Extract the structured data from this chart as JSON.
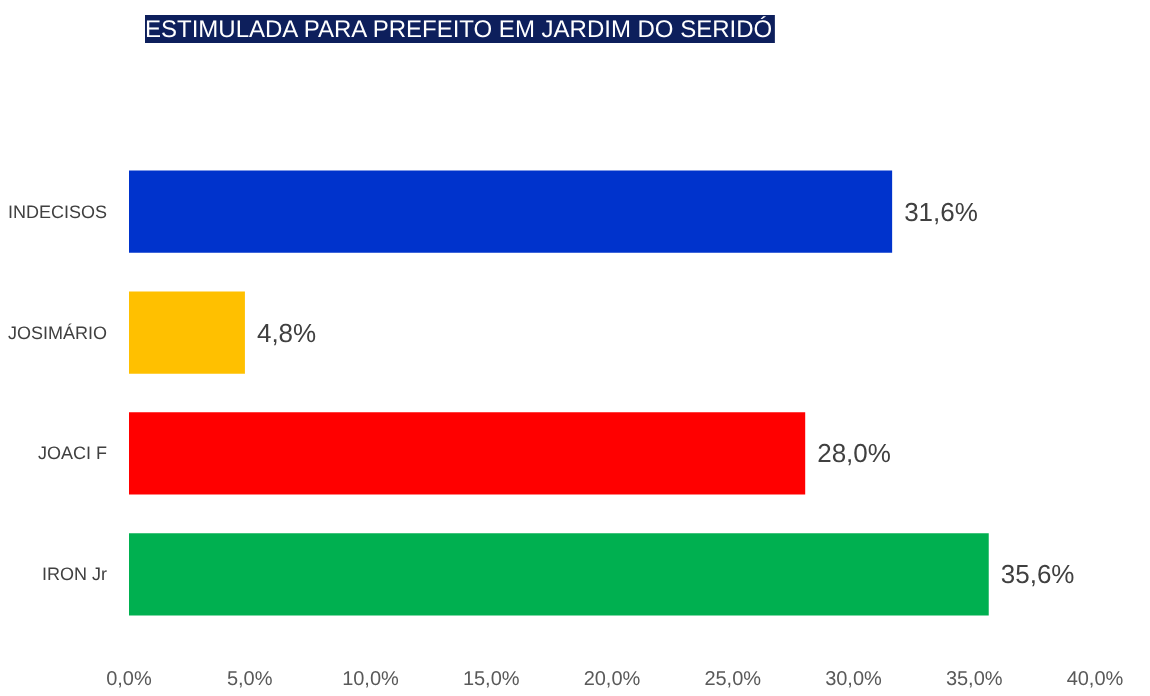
{
  "chart_data": {
    "type": "bar",
    "orientation": "horizontal",
    "title": "ESTIMULADA PARA PREFEITO EM JARDIM DO SERIDÓ",
    "categories": [
      "INDECISOS",
      "JOSIMÁRIO",
      "JOACI F",
      "IRON Jr"
    ],
    "values": [
      31.6,
      4.8,
      28.0,
      35.6
    ],
    "colors": [
      "#0033cc",
      "#ffc000",
      "#ff0000",
      "#00b050"
    ],
    "value_labels": [
      "31,6%",
      "4,8%",
      "28,0%",
      "35,6%"
    ],
    "xlim": [
      0,
      40
    ],
    "xticks": [
      {
        "value": 0,
        "label": "0,0%"
      },
      {
        "value": 5,
        "label": "5,0%"
      },
      {
        "value": 10,
        "label": "10,0%"
      },
      {
        "value": 15,
        "label": "15,0%"
      },
      {
        "value": 20,
        "label": "20,0%"
      },
      {
        "value": 25,
        "label": "25,0%"
      },
      {
        "value": 30,
        "label": "30,0%"
      },
      {
        "value": 35,
        "label": "35,0%"
      },
      {
        "value": 40,
        "label": "40,0%"
      }
    ],
    "grid": false
  }
}
